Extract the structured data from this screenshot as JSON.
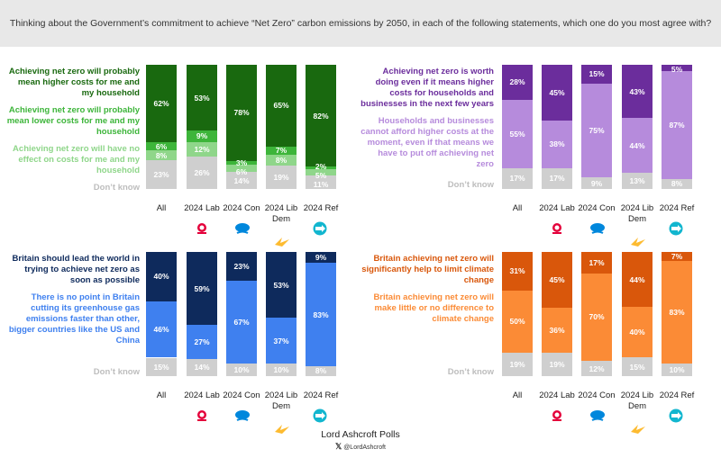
{
  "header": {
    "question": "Thinking about the Government’s commitment to achieve “Net Zero” carbon emissions by 2050, in each of the following statements, which one do you most agree with?"
  },
  "footer": {
    "brand": "Lord Ashcroft Polls",
    "handle": "@LordAshcroft",
    "x_icon": "x-logo-icon"
  },
  "chart_data": [
    {
      "type": "bar",
      "stacked": true,
      "ylim": [
        0,
        100
      ],
      "categories": [
        "All",
        "2024 Lab",
        "2024 Con",
        "2024 Lib Dem",
        "2024 Ref"
      ],
      "series": [
        {
          "name": "Achieving net zero will probably mean higher costs for me and my household",
          "color": "#19690f",
          "values": [
            62,
            53,
            78,
            65,
            82
          ]
        },
        {
          "name": "Achieving net zero will probably mean lower costs for me and my household",
          "color": "#3db53a",
          "values": [
            6,
            9,
            3,
            7,
            2
          ]
        },
        {
          "name": "Achieving net zero will have no effect on costs for me and my household",
          "color": "#8fd68a",
          "values": [
            8,
            12,
            6,
            8,
            5
          ]
        },
        {
          "name": "Don’t know",
          "color": "#cfcfcf",
          "values": [
            23,
            26,
            14,
            19,
            11
          ]
        }
      ]
    },
    {
      "type": "bar",
      "stacked": true,
      "ylim": [
        0,
        100
      ],
      "categories": [
        "All",
        "2024 Lab",
        "2024 Con",
        "2024 Lib Dem",
        "2024 Ref"
      ],
      "series": [
        {
          "name": "Achieving net zero is worth doing even if it means higher costs for households and businesses in the next few years",
          "color": "#6b2d9c",
          "values": [
            28,
            45,
            15,
            43,
            5
          ]
        },
        {
          "name": "Households and businesses cannot afford higher costs at the moment, even if that means we have to put off achieving net zero",
          "color": "#b68bdc",
          "values": [
            55,
            38,
            75,
            44,
            87
          ]
        },
        {
          "name": "Don’t know",
          "color": "#cfcfcf",
          "values": [
            17,
            17,
            9,
            13,
            8
          ]
        }
      ]
    },
    {
      "type": "bar",
      "stacked": true,
      "ylim": [
        0,
        100
      ],
      "categories": [
        "All",
        "2024 Lab",
        "2024 Con",
        "2024 Lib Dem",
        "2024 Ref"
      ],
      "series": [
        {
          "name": "Britain should lead the world in trying to achieve net zero as soon as possible",
          "color": "#0e2a5c",
          "values": [
            40,
            59,
            23,
            53,
            9
          ]
        },
        {
          "name": "There is no point in Britain cutting its greenhouse gas emissions faster than other, bigger countries like the US and China",
          "color": "#3f80ef",
          "values": [
            46,
            27,
            67,
            37,
            83
          ]
        },
        {
          "name": "Don’t know",
          "color": "#cfcfcf",
          "values": [
            15,
            14,
            10,
            10,
            8
          ]
        }
      ]
    },
    {
      "type": "bar",
      "stacked": true,
      "ylim": [
        0,
        100
      ],
      "categories": [
        "All",
        "2024 Lab",
        "2024 Con",
        "2024 Lib Dem",
        "2024 Ref"
      ],
      "series": [
        {
          "name": "Britain achieving net zero will significantly help to limit climate change",
          "color": "#d9570b",
          "values": [
            31,
            45,
            17,
            44,
            7
          ]
        },
        {
          "name": "Britain achieving net zero will make little or no difference to climate change",
          "color": "#fb8b36",
          "values": [
            50,
            36,
            70,
            40,
            83
          ]
        },
        {
          "name": "Don’t know",
          "color": "#cfcfcf",
          "values": [
            19,
            19,
            12,
            15,
            10
          ]
        }
      ]
    }
  ],
  "party_logos": [
    "",
    "labour-rose-icon",
    "conservative-tree-icon",
    "libdem-bird-icon",
    "reform-arrow-icon"
  ]
}
